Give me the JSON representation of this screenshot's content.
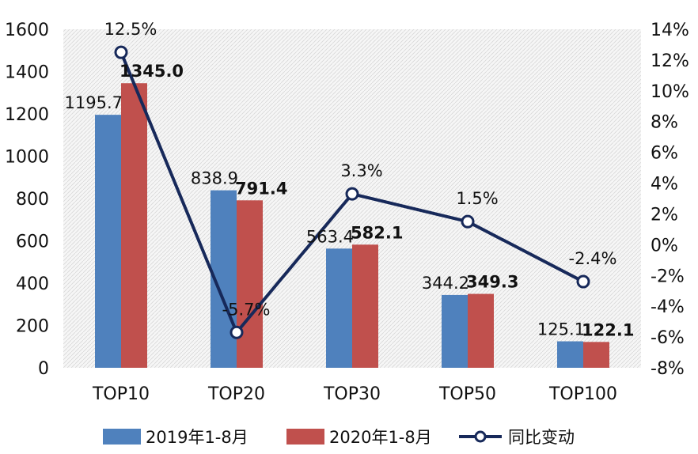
{
  "chart_data": {
    "type": "bar",
    "categories": [
      "TOP10",
      "TOP20",
      "TOP30",
      "TOP50",
      "TOP100"
    ],
    "series": [
      {
        "name": "2019年1-8月",
        "type": "bar",
        "axis": "left",
        "color": "#4f81bd",
        "values": [
          1195.7,
          838.9,
          563.4,
          344.2,
          125.1
        ],
        "labels": [
          "1195.7",
          "838.9",
          "563.4",
          "344.2",
          "125.1"
        ]
      },
      {
        "name": "2020年1-8月",
        "type": "bar",
        "axis": "left",
        "color": "#c0504d",
        "values": [
          1345.0,
          791.4,
          582.1,
          349.3,
          122.1
        ],
        "labels": [
          "1345.0",
          "791.4",
          "582.1",
          "349.3",
          "122.1"
        ]
      },
      {
        "name": "同比变动",
        "type": "line",
        "axis": "right",
        "color": "#17295a",
        "values": [
          12.5,
          -5.7,
          3.3,
          1.5,
          -2.4
        ],
        "labels": [
          "12.5%",
          "-5.7%",
          "3.3%",
          "1.5%",
          "-2.4%"
        ]
      }
    ],
    "y_left": {
      "min": 0,
      "max": 1600,
      "step": 200,
      "ticks": [
        "0",
        "200",
        "400",
        "600",
        "800",
        "1000",
        "1200",
        "1400",
        "1600"
      ]
    },
    "y_right": {
      "min": -8,
      "max": 14,
      "step": 2,
      "ticks": [
        "-8%",
        "-6%",
        "-4%",
        "-2%",
        "0%",
        "2%",
        "4%",
        "6%",
        "8%",
        "10%",
        "12%",
        "14%"
      ]
    },
    "grid": false,
    "plot_background": "hatched",
    "legend_position": "bottom"
  }
}
